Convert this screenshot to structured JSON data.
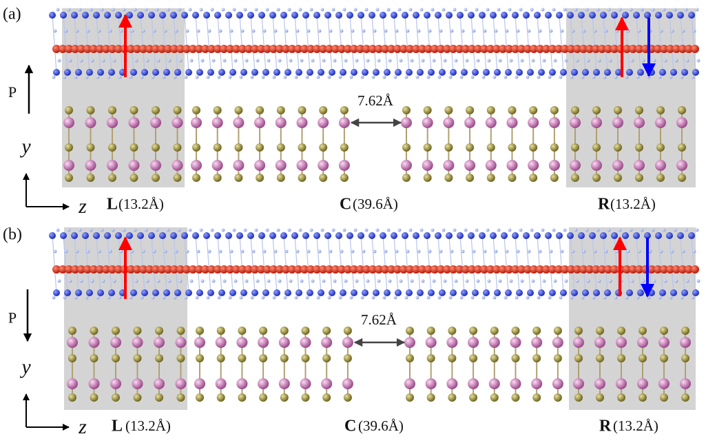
{
  "panels": [
    {
      "label": "(a)",
      "polarization": "P",
      "axis_y": "y",
      "axis_z": "z",
      "spacing": "7.62Å",
      "regions": [
        {
          "name": "L",
          "length": "(13.2Å)"
        },
        {
          "name": "C",
          "length": "(39.6Å)"
        },
        {
          "name": "R",
          "length": "(13.2Å)"
        }
      ]
    },
    {
      "label": "(b)",
      "polarization": "P",
      "axis_y": "y",
      "axis_z": "z",
      "spacing": "7.62Å",
      "regions": [
        {
          "name": "L",
          "length": "(13.2Å)"
        },
        {
          "name": "C",
          "length": "(39.6Å)"
        },
        {
          "name": "R",
          "length": "(13.2Å)"
        }
      ]
    }
  ]
}
